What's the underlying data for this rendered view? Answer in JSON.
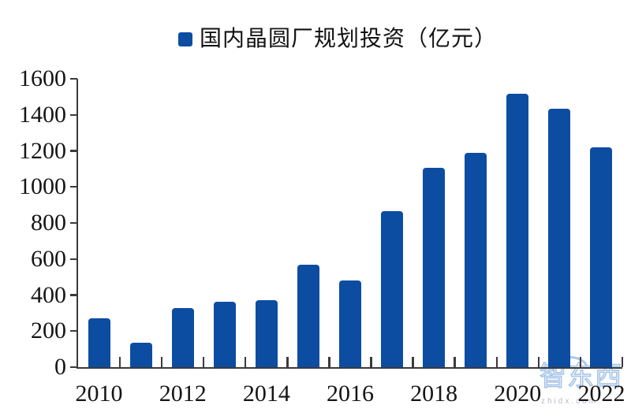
{
  "legend": {
    "label": "国内晶圆厂规划投资（亿元）",
    "swatch_color": "#0C4DA2",
    "position": "top-center"
  },
  "chart_data": {
    "type": "bar",
    "title": "国内晶圆厂规划投资（亿元）",
    "xlabel": "",
    "ylabel": "",
    "categories": [
      "2010",
      "2011",
      "2012",
      "2013",
      "2014",
      "2015",
      "2016",
      "2017",
      "2018",
      "2019",
      "2020",
      "2021",
      "2022"
    ],
    "values": [
      270,
      135,
      330,
      365,
      370,
      570,
      480,
      865,
      1105,
      1190,
      1515,
      1435,
      1220
    ],
    "ylim": [
      0,
      1600
    ],
    "yticks": [
      0,
      200,
      400,
      600,
      800,
      1000,
      1200,
      1400,
      1600
    ],
    "xtick_labels_shown": [
      "2010",
      "2012",
      "2014",
      "2016",
      "2018",
      "2020",
      "2022"
    ],
    "bar_color": "#0C4DA2",
    "axis_color": "#3a3a3a",
    "label_color": "#151515",
    "grid": false,
    "legend_position": "top-center"
  },
  "watermark": {
    "text": "智东西",
    "subtext": "zhidx.com",
    "color": "#a4c4e8"
  }
}
